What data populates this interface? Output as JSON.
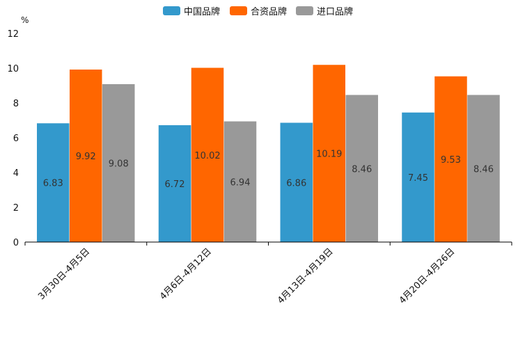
{
  "chart_data": {
    "type": "bar",
    "unit": "%",
    "categories": [
      "3月30日-4月5日",
      "4月6日-4月12日",
      "4月13日-4月19日",
      "4月20日-4月26日"
    ],
    "series": [
      {
        "name": "中国品牌",
        "color": "#3399cc",
        "values": [
          6.83,
          6.72,
          6.86,
          7.45
        ]
      },
      {
        "name": "合资品牌",
        "color": "#ff6600",
        "values": [
          9.92,
          10.02,
          10.19,
          9.53
        ]
      },
      {
        "name": "进口品牌",
        "color": "#999999",
        "values": [
          9.08,
          6.94,
          8.46,
          8.46
        ]
      }
    ],
    "value_labels": [
      [
        "6.83",
        "6.72",
        "6.86",
        "7.45"
      ],
      [
        "9.92",
        "10.02",
        "10.19",
        "9.53"
      ],
      [
        "9.08",
        "6.94",
        "8.46",
        "8.46"
      ]
    ],
    "ylim": [
      0,
      12
    ],
    "yticks": [
      "0",
      "2",
      "4",
      "6",
      "8",
      "10",
      "12"
    ],
    "legend_position": "top-center"
  }
}
